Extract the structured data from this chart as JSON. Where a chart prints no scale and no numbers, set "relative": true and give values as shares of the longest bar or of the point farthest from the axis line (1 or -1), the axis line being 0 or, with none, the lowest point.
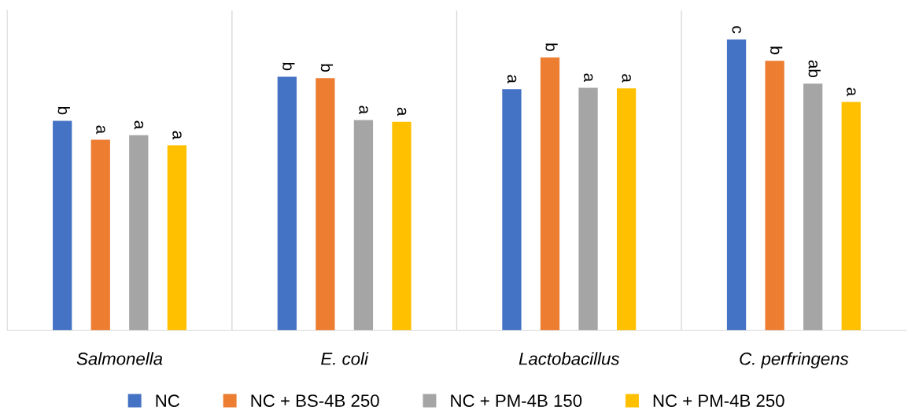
{
  "chart_data": {
    "type": "bar",
    "relative": true,
    "categories": [
      "Salmonella",
      "E. coli",
      "Lactobacillus",
      "C. perfringens"
    ],
    "series": [
      {
        "name": "NC",
        "color": "#4472c4",
        "values": [
          0.72,
          0.872,
          0.829,
          1.0
        ]
      },
      {
        "name": "NC + BS-4B 250",
        "color": "#ed7d31",
        "values": [
          0.655,
          0.867,
          0.938,
          0.927
        ]
      },
      {
        "name": "NC + PM-4B 150",
        "color": "#a5a5a5",
        "values": [
          0.671,
          0.723,
          0.834,
          0.848
        ]
      },
      {
        "name": "NC + PM-4B 250",
        "color": "#ffc000",
        "values": [
          0.636,
          0.717,
          0.832,
          0.785
        ]
      }
    ],
    "annotations": [
      "b",
      "a",
      "a",
      "a",
      "b",
      "b",
      "a",
      "a",
      "a",
      "b",
      "a",
      "a",
      "c",
      "b",
      "ab",
      "a"
    ],
    "grid": "x",
    "legend": "bottom"
  }
}
